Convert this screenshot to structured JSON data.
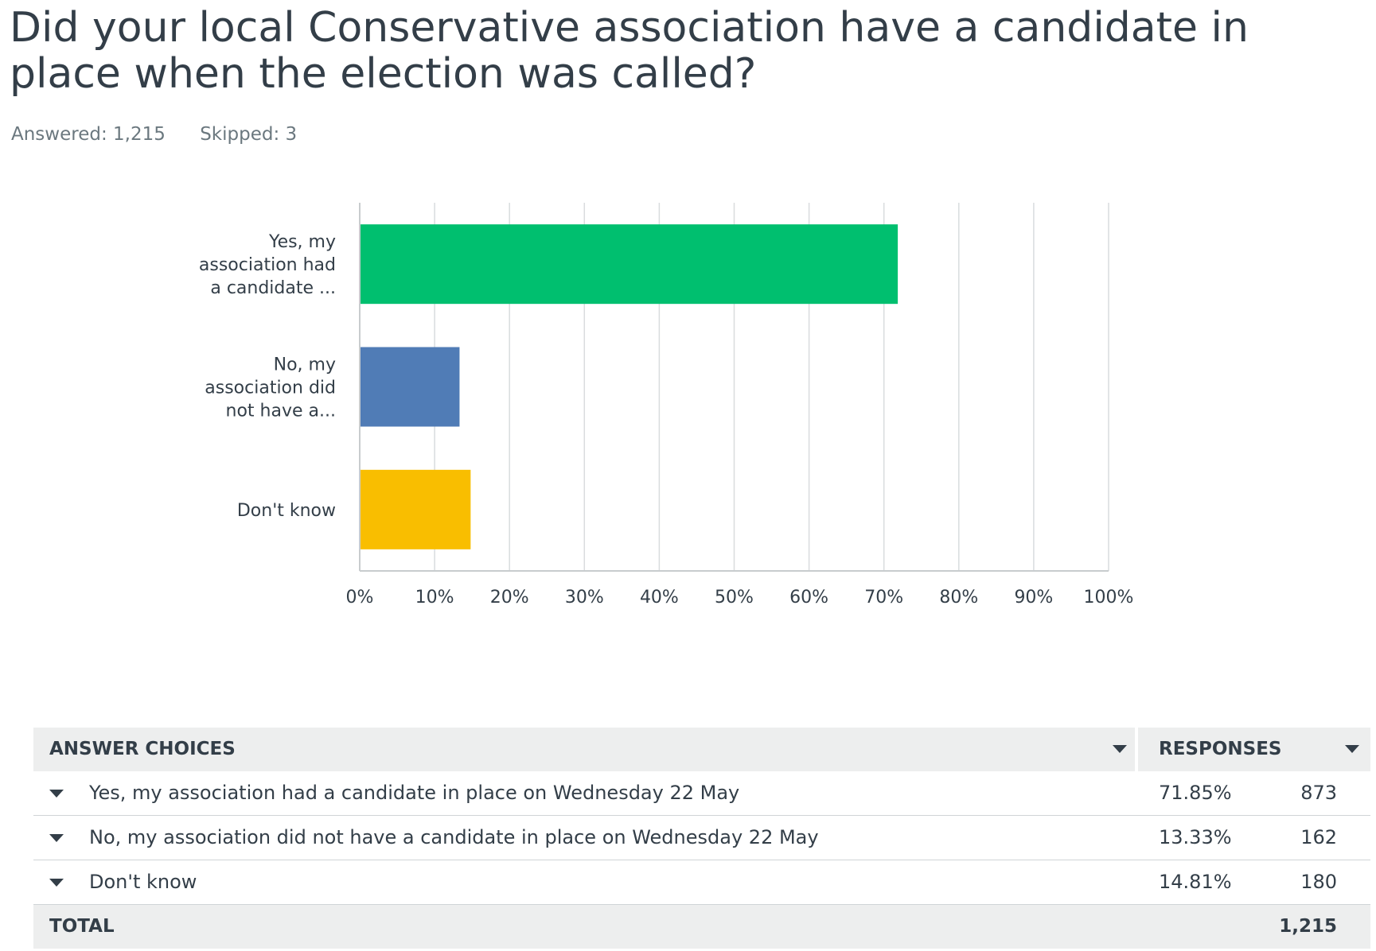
{
  "question": {
    "title": "Did your local Conservative association have a candidate in place when the election was called?",
    "answered_label": "Answered: 1,215",
    "skipped_label": "Skipped: 3"
  },
  "colors": {
    "bars": [
      "#00bf6f",
      "#507cb6",
      "#f9be00"
    ],
    "grid": "#d9dcde",
    "axis": "#c8ccce"
  },
  "chart_data": {
    "type": "bar",
    "orientation": "horizontal",
    "categories": [
      [
        "Yes, my",
        "association had",
        "a candidate ..."
      ],
      [
        "No, my",
        "association did",
        "not have a..."
      ],
      [
        "Don't know"
      ]
    ],
    "values": [
      71.85,
      13.33,
      14.81
    ],
    "xlim": [
      0,
      100
    ],
    "xticks": [
      "0%",
      "10%",
      "20%",
      "30%",
      "40%",
      "50%",
      "60%",
      "70%",
      "80%",
      "90%",
      "100%"
    ],
    "grid": true,
    "title": "",
    "xlabel": "",
    "ylabel": ""
  },
  "table": {
    "header": {
      "choices": "ANSWER CHOICES",
      "responses": "RESPONSES"
    },
    "rows": [
      {
        "choice": "Yes, my association had a candidate in place on Wednesday 22 May",
        "percent": "71.85%",
        "count": "873"
      },
      {
        "choice": "No, my association did not have a candidate in place on Wednesday 22 May",
        "percent": "13.33%",
        "count": "162"
      },
      {
        "choice": "Don't know",
        "percent": "14.81%",
        "count": "180"
      }
    ],
    "total": {
      "label": "TOTAL",
      "count": "1,215"
    }
  }
}
